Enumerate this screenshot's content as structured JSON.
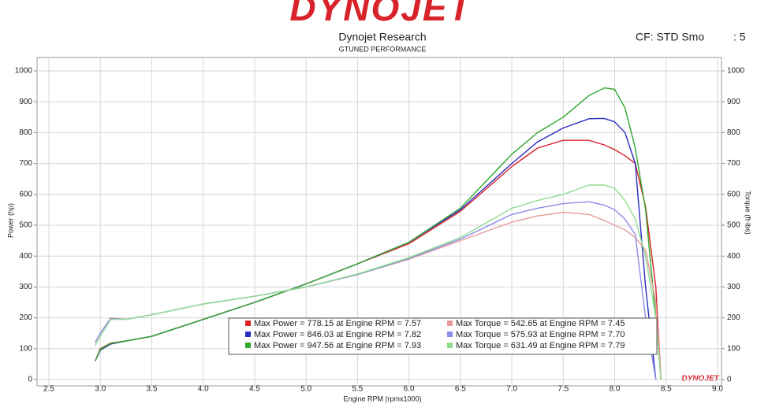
{
  "chart_data": {
    "type": "line",
    "logo": "DYNOJET",
    "title": "Dynojet Research",
    "subtitle": "GTUNED PERFORMANCE",
    "correction_left": "CF: STD Smo",
    "correction_right": ": 5",
    "watermark": "DYNOJET",
    "x_label": "Engine RPM (rpmx1000)",
    "y_label": "Power (hp)",
    "y2_label": "Torque (ft-lbs)",
    "x": [
      2.95,
      3.0,
      3.1,
      3.25,
      3.5,
      4.0,
      4.5,
      5.0,
      5.5,
      6.0,
      6.5,
      7.0,
      7.25,
      7.5,
      7.75,
      7.9,
      8.0,
      8.1,
      8.2,
      8.3,
      8.4,
      8.45
    ],
    "series": [
      {
        "name": "Max Power = 778.15 at Engine RPM = 7.57",
        "color": "#d8232a",
        "values": [
          60,
          100,
          118,
          125,
          140,
          195,
          250,
          310,
          375,
          440,
          545,
          690,
          750,
          775,
          775,
          760,
          745,
          725,
          700,
          560,
          300,
          0
        ]
      },
      {
        "name": "Max Power = 846.03 at Engine RPM = 7.82",
        "color": "#2b2bbf",
        "values": [
          60,
          95,
          115,
          125,
          140,
          195,
          250,
          310,
          375,
          445,
          550,
          700,
          770,
          815,
          845,
          846,
          835,
          800,
          700,
          300,
          0,
          null
        ]
      },
      {
        "name": "Max Power = 947.56 at Engine RPM = 7.93",
        "color": "#2ea82e",
        "values": [
          60,
          98,
          117,
          125,
          140,
          195,
          250,
          310,
          375,
          445,
          555,
          730,
          800,
          850,
          920,
          945,
          940,
          880,
          750,
          550,
          200,
          0
        ]
      },
      {
        "name": "Max Torque = 542.65 at Engine RPM = 7.45",
        "color": "#e89a9a",
        "axis": "y2",
        "values": [
          120,
          150,
          200,
          195,
          210,
          245,
          270,
          300,
          340,
          390,
          450,
          510,
          530,
          542,
          535,
          515,
          500,
          485,
          460,
          420,
          250,
          0
        ]
      },
      {
        "name": "Max Torque = 575.93 at Engine RPM = 7.70",
        "color": "#8c8ce6",
        "axis": "y2",
        "values": [
          120,
          150,
          198,
          195,
          210,
          245,
          270,
          300,
          340,
          392,
          455,
          535,
          555,
          570,
          576,
          565,
          550,
          520,
          470,
          200,
          0,
          null
        ]
      },
      {
        "name": "Max Torque = 631.49 at Engine RPM = 7.79",
        "color": "#8fdc8f",
        "axis": "y2",
        "values": [
          110,
          140,
          195,
          195,
          210,
          245,
          270,
          300,
          342,
          395,
          460,
          555,
          580,
          600,
          630,
          630,
          620,
          580,
          520,
          400,
          200,
          0
        ]
      }
    ],
    "xlim": [
      2.5,
      9.0
    ],
    "xticks": [
      {
        "value": 2.5,
        "label": "2.5"
      },
      {
        "value": 3.0,
        "label": "3.0"
      },
      {
        "value": 3.5,
        "label": "3.5"
      },
      {
        "value": 4.0,
        "label": "4.0"
      },
      {
        "value": 4.5,
        "label": "4.5"
      },
      {
        "value": 5.0,
        "label": "5.0"
      },
      {
        "value": 5.5,
        "label": "5.5"
      },
      {
        "value": 6.0,
        "label": "6.0"
      },
      {
        "value": 6.5,
        "label": "6.5"
      },
      {
        "value": 7.0,
        "label": "7.0"
      },
      {
        "value": 7.5,
        "label": "7.5"
      },
      {
        "value": 8.0,
        "label": "8.0"
      },
      {
        "value": 8.5,
        "label": "8.5"
      },
      {
        "value": 9.0,
        "label": "9.0"
      }
    ],
    "ylim": [
      0,
      1000
    ],
    "yticks": [
      0,
      100,
      200,
      300,
      400,
      500,
      600,
      700,
      800,
      900,
      1000
    ],
    "y2lim": [
      0,
      1000
    ],
    "y2ticks": [
      0,
      100,
      200,
      300,
      400,
      500,
      600,
      700,
      800,
      900,
      1000
    ],
    "grid": true
  }
}
